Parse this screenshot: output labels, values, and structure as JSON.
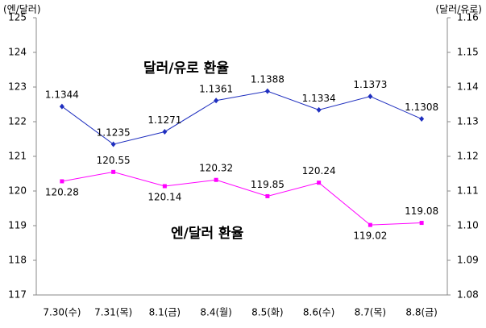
{
  "chart_data": {
    "type": "line",
    "annotations": [
      "달러/유로 환율",
      "엔/달러 환율"
    ],
    "y_label": "(엔/달러)",
    "y2_label": "(달러/유로)",
    "categories": [
      "7.30(수)",
      "7.31(목)",
      "8.1(금)",
      "8.4(월)",
      "8.5(화)",
      "8.6(수)",
      "8.7(목)",
      "8.8(금)"
    ],
    "series": [
      {
        "name": "엔/달러 환율",
        "color": "#ff00ff",
        "axis": "y",
        "values": [
          120.28,
          120.55,
          120.14,
          120.32,
          119.85,
          120.24,
          119.02,
          119.08
        ]
      },
      {
        "name": "달러/유로 환율",
        "color": "#1f2fbf",
        "axis": "y2",
        "values": [
          1.1344,
          1.1235,
          1.1271,
          1.1361,
          1.1388,
          1.1334,
          1.1373,
          1.1308
        ]
      }
    ],
    "ylim": [
      117,
      125
    ],
    "yticks": [
      117,
      118,
      119,
      120,
      121,
      122,
      123,
      124,
      125
    ],
    "y2lim": [
      1.08,
      1.16
    ],
    "y2ticks": [
      1.08,
      1.09,
      {
        "value": 1.1,
        "label": "1.10"
      },
      1.11,
      1.12,
      1.13,
      1.14,
      1.15,
      1.16
    ],
    "grid": false
  }
}
